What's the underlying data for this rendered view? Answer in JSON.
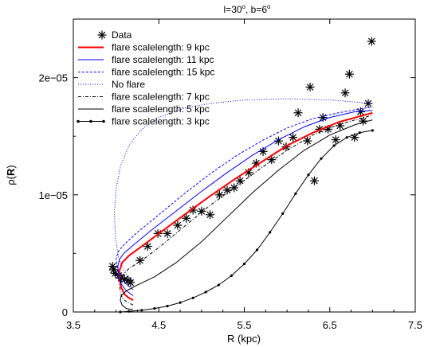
{
  "chart_data": {
    "type": "line",
    "title_main": "l=30",
    "title_deg1": "o",
    "title_mid": ", b=6",
    "title_deg2": "o",
    "xlabel": "R (kpc)",
    "ylabel_rho": "ρ(",
    "ylabel_bold": "R",
    "ylabel_close": ")",
    "xlim": [
      3.5,
      7.5
    ],
    "ylim": [
      0,
      2.5e-05
    ],
    "x_ticks": [
      3.5,
      4.5,
      5.5,
      6.5,
      7.5
    ],
    "x_tick_labels": [
      "3.5",
      "4.5",
      "5.5",
      "6.5",
      "7.5"
    ],
    "y_ticks": [
      0,
      1e-05,
      2e-05
    ],
    "y_tick_labels": [
      "0",
      "1e−05",
      "2e−05"
    ],
    "grid": false,
    "legend_position": "top-left",
    "series": [
      {
        "name": "Data",
        "style": "markers",
        "marker": "asterisk",
        "color": "#000000",
        "x": [
          3.96,
          3.97,
          3.99,
          4.03,
          4.06,
          4.1,
          4.14,
          4.17,
          4.28,
          4.37,
          4.49,
          4.6,
          4.72,
          4.82,
          4.9,
          5.0,
          5.1,
          5.21,
          5.3,
          5.38,
          5.45,
          5.55,
          5.64,
          5.72,
          5.82,
          5.9,
          5.99,
          6.07,
          6.13,
          6.24,
          6.27,
          6.32,
          6.38,
          6.42,
          6.48,
          6.57,
          6.62,
          6.68,
          6.73,
          6.79,
          6.86,
          6.89,
          6.95,
          6.99
        ],
        "y": [
          3.9e-06,
          3.6e-06,
          3.3e-06,
          3.1e-06,
          2.9e-06,
          2.8e-06,
          2.7e-06,
          2.5e-06,
          4.4e-06,
          5.6e-06,
          6.7e-06,
          6.7e-06,
          7.4e-06,
          8e-06,
          8.7e-06,
          8.6e-06,
          8.3e-06,
          1e-05,
          1.04e-05,
          1.06e-05,
          1.12e-05,
          1.19e-05,
          1.27e-05,
          1.37e-05,
          1.3e-05,
          1.46e-05,
          1.41e-05,
          1.49e-05,
          1.7e-05,
          1.46e-05,
          1.92e-05,
          1.12e-05,
          1.56e-05,
          1.66e-05,
          1.56e-05,
          1.47e-05,
          1.59e-05,
          1.87e-05,
          2.03e-05,
          1.49e-05,
          1.71e-05,
          1.63e-05,
          1.78e-05,
          2.31e-05
        ]
      },
      {
        "name": "flare scalelength: 9 kpc",
        "style": "solid",
        "color": "#ff0000",
        "width": 2,
        "x": [
          4.2,
          4.15,
          4.1,
          4.06,
          4.04,
          4.04,
          4.07,
          4.15,
          4.3,
          4.5,
          4.8,
          5.1,
          5.4,
          5.7,
          6.0,
          6.3,
          6.6,
          6.9,
          7.0
        ],
        "y": [
          1e-06,
          1.2e-06,
          1.5e-06,
          2.1e-06,
          2.8e-06,
          3.5e-06,
          4.2e-06,
          4.8e-06,
          5.6e-06,
          6.7e-06,
          8.3e-06,
          9.9e-06,
          1.14e-05,
          1.28e-05,
          1.42e-05,
          1.53e-05,
          1.62e-05,
          1.68e-05,
          1.7e-05
        ]
      },
      {
        "name": "flare scalelength: 11 kpc",
        "style": "solid",
        "color": "#0000ff",
        "width": 1,
        "x": [
          4.2,
          4.12,
          4.06,
          4.03,
          4.02,
          4.04,
          4.09,
          4.2,
          4.4,
          4.7,
          5.0,
          5.3,
          5.6,
          5.9,
          6.2,
          6.5,
          6.8,
          7.0
        ],
        "y": [
          1.4e-06,
          1.8e-06,
          2.4e-06,
          3.1e-06,
          3.9e-06,
          4.5e-06,
          5e-06,
          5.7e-06,
          6.9e-06,
          8.6e-06,
          1.03e-05,
          1.19e-05,
          1.34e-05,
          1.47e-05,
          1.58e-05,
          1.66e-05,
          1.71e-05,
          1.72e-05
        ]
      },
      {
        "name": "flare scalelength: 15 kpc",
        "style": "dashed",
        "color": "#0000ff",
        "width": 1,
        "x": [
          4.2,
          4.1,
          4.04,
          4.01,
          4.0,
          4.03,
          4.1,
          4.25,
          4.5,
          4.8,
          5.1,
          5.4,
          5.7,
          6.0,
          6.3,
          6.6,
          6.9,
          7.0
        ],
        "y": [
          1.9e-06,
          2.5e-06,
          3.2e-06,
          4e-06,
          4.6e-06,
          5.2e-06,
          5.8e-06,
          6.8e-06,
          8.3e-06,
          1.01e-05,
          1.18e-05,
          1.33e-05,
          1.46e-05,
          1.57e-05,
          1.65e-05,
          1.7e-05,
          1.74e-05,
          1.75e-05
        ]
      },
      {
        "name": "No flare",
        "style": "dotted",
        "color": "#0000ff",
        "width": 1,
        "x": [
          4.2,
          4.1,
          4.03,
          3.99,
          3.98,
          4.0,
          4.05,
          4.15,
          4.3,
          4.5,
          4.8,
          5.1,
          5.5,
          6.0,
          6.5,
          7.0
        ],
        "y": [
          2.6e-06,
          3.4e-06,
          4.6e-06,
          6.5e-06,
          8.5e-06,
          1.05e-05,
          1.24e-05,
          1.42e-05,
          1.56e-05,
          1.66e-05,
          1.74e-05,
          1.78e-05,
          1.81e-05,
          1.82e-05,
          1.81e-05,
          1.78e-05
        ]
      },
      {
        "name": "flare scalelength: 7 kpc",
        "style": "dashdot",
        "color": "#000000",
        "width": 1,
        "x": [
          4.2,
          4.14,
          4.08,
          4.05,
          4.04,
          4.07,
          4.15,
          4.3,
          4.5,
          4.8,
          5.1,
          5.4,
          5.7,
          6.0,
          6.3,
          6.6,
          6.9,
          7.0
        ],
        "y": [
          6e-07,
          8e-07,
          1.1e-06,
          1.7e-06,
          2.4e-06,
          3.1e-06,
          3.7e-06,
          4.4e-06,
          5.5e-06,
          7.3e-06,
          9.1e-06,
          1.07e-05,
          1.23e-05,
          1.38e-05,
          1.51e-05,
          1.6e-05,
          1.66e-05,
          1.68e-05
        ]
      },
      {
        "name": "flare scalelength: 5 kpc",
        "style": "solid",
        "color": "#000000",
        "width": 1,
        "x": [
          4.2,
          4.12,
          4.07,
          4.05,
          4.06,
          4.12,
          4.25,
          4.45,
          4.7,
          5.0,
          5.3,
          5.6,
          5.9,
          6.2,
          6.5,
          6.8,
          7.0
        ],
        "y": [
          2e-07,
          3e-07,
          6e-07,
          1e-06,
          1.4e-06,
          1.8e-06,
          2.3e-06,
          3e-06,
          4.2e-06,
          6e-06,
          8.1e-06,
          1.02e-05,
          1.21e-05,
          1.38e-05,
          1.51e-05,
          1.6e-05,
          1.64e-05
        ]
      },
      {
        "name": "flare scalelength: 3 kpc",
        "style": "solid-dots",
        "color": "#000000",
        "width": 1,
        "x": [
          4.05,
          4.15,
          4.3,
          4.45,
          4.6,
          4.75,
          4.9,
          5.05,
          5.2,
          5.35,
          5.5,
          5.65,
          5.8,
          5.95,
          6.1,
          6.25,
          6.4,
          6.55,
          6.7,
          6.85,
          7.0
        ],
        "y": [
          0.0,
          5e-08,
          1.5e-07,
          3e-07,
          5e-07,
          8e-07,
          1.2e-06,
          1.7e-06,
          2.3e-06,
          3.1e-06,
          4.1e-06,
          5.3e-06,
          6.8e-06,
          8.4e-06,
          1.01e-05,
          1.17e-05,
          1.31e-05,
          1.42e-05,
          1.49e-05,
          1.53e-05,
          1.55e-05
        ]
      }
    ]
  }
}
